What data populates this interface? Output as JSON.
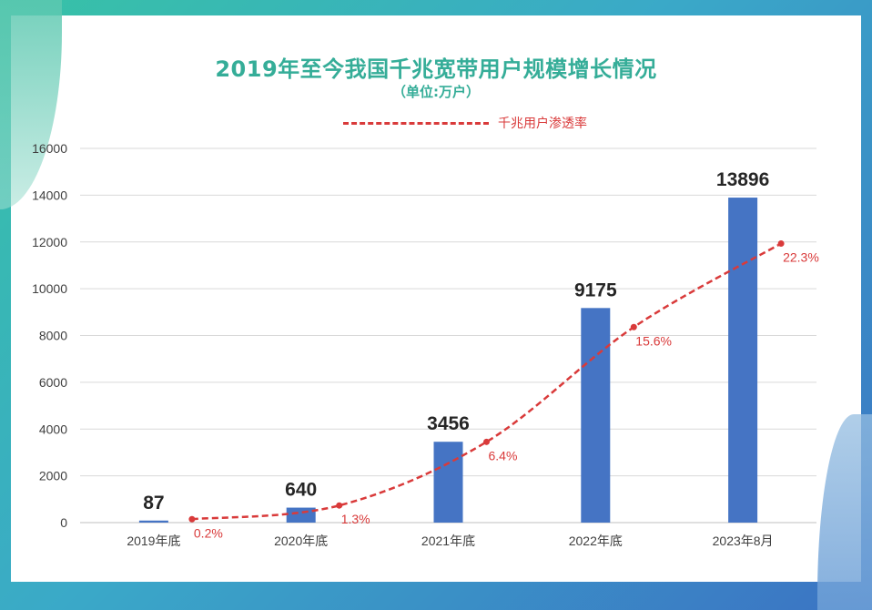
{
  "chart_data": {
    "type": "bar",
    "title": "2019年至今我国千兆宽带用户规模增长情况",
    "subtitle": "（单位:万户）",
    "categories": [
      "2019年底",
      "2020年底",
      "2021年底",
      "2022年底",
      "2023年8月"
    ],
    "bar_values": [
      87,
      640,
      3456,
      9175,
      13896
    ],
    "bar_labels": [
      "87",
      "640",
      "3456",
      "9175",
      "13896"
    ],
    "line_series": {
      "name": "千兆用户渗透率",
      "values": [
        0.2,
        1.3,
        6.4,
        15.6,
        22.3
      ],
      "labels": [
        "0.2%",
        "1.3%",
        "6.4%",
        "15.6%",
        "22.3%"
      ]
    },
    "y_ticks": [
      "0",
      "2000",
      "4000",
      "6000",
      "8000",
      "10000",
      "12000",
      "14000",
      "16000"
    ],
    "ylim": [
      0,
      16000
    ],
    "grid": true,
    "legend_position": "top",
    "colors": {
      "bar": "#4574c4",
      "line": "#d93a3a",
      "title": "#35ad98"
    }
  }
}
